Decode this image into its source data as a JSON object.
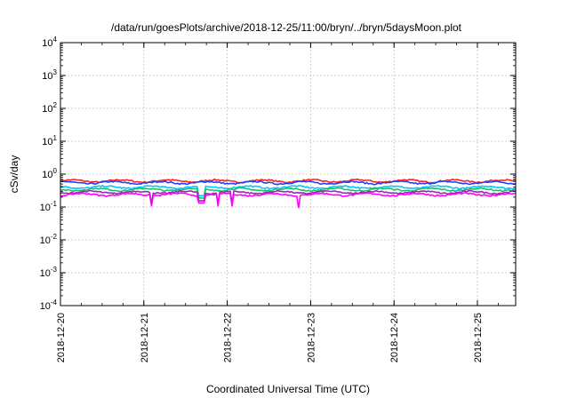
{
  "chart_data": {
    "type": "line",
    "title": "/data/run/goesPlots/archive/2018-12-25/11:00/bryn/../bryn/5daysMoon.plot",
    "xlabel": "Coordinated Universal Time (UTC)",
    "ylabel": "cSv/day",
    "y_scale": "log",
    "ylim_exponent": [
      -4,
      4
    ],
    "y_ticks": [
      {
        "base": "10",
        "exp": "-4"
      },
      {
        "base": "10",
        "exp": "-3"
      },
      {
        "base": "10",
        "exp": "-2"
      },
      {
        "base": "10",
        "exp": "-1"
      },
      {
        "base": "10",
        "exp": "0"
      },
      {
        "base": "10",
        "exp": "1"
      },
      {
        "base": "10",
        "exp": "2"
      },
      {
        "base": "10",
        "exp": "3"
      },
      {
        "base": "10",
        "exp": "4"
      }
    ],
    "xlim": [
      "2018-12-20T00:00",
      "2018-12-25T11:00"
    ],
    "x_ticks": [
      "2018-12-20",
      "2018-12-21",
      "2018-12-22",
      "2018-12-23",
      "2018-12-24",
      "2018-12-25"
    ],
    "grid": true,
    "series": [
      {
        "color": "#ff2020",
        "level": 0.62
      },
      {
        "color": "#2040ff",
        "level": 0.55
      },
      {
        "color": "#00c8ff",
        "level": 0.4
      },
      {
        "color": "#20c060",
        "level": 0.34
      },
      {
        "color": "#a020c0",
        "level": 0.28
      },
      {
        "color": "#ff00ff",
        "level": 0.24
      }
    ]
  }
}
